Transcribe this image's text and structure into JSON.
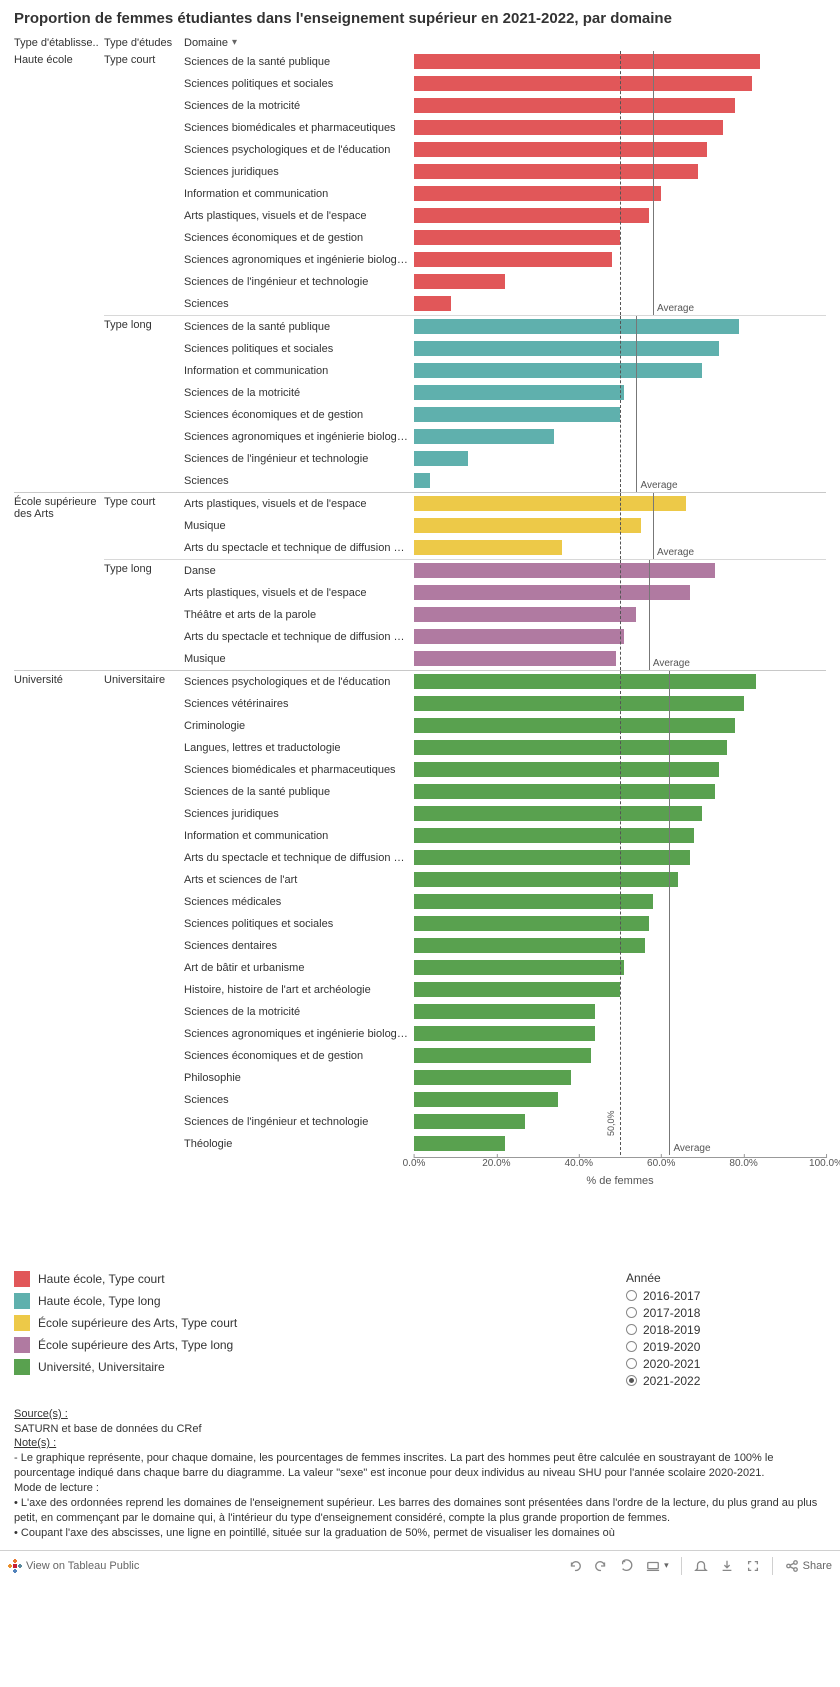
{
  "title": "Proportion de femmes étudiantes dans l'enseignement supérieur en 2021-2022, par domaine",
  "headers": {
    "etab": "Type d'établisse..",
    "etude": "Type d'études",
    "dom": "Domaine"
  },
  "axis": {
    "label": "% de femmes",
    "xlim": [
      0,
      100
    ],
    "ticks": [
      0,
      20,
      40,
      60,
      80,
      100
    ],
    "tick_labels": [
      "0.0%",
      "20.0%",
      "40.0%",
      "60.0%",
      "80.0%",
      "100.0%"
    ],
    "ref_line": 50.0,
    "ref_label": "50,0%"
  },
  "colors": {
    "he_court": "#e15759",
    "he_long": "#5fb0ad",
    "esa_court": "#edc948",
    "esa_long": "#b07aa1",
    "univ": "#59a14f",
    "ref_line": "#555555",
    "avg_line": "#777777",
    "bg": "#ffffff",
    "text": "#333333"
  },
  "groups": [
    {
      "etab": "Haute école",
      "subgroups": [
        {
          "etude": "Type court",
          "color_key": "he_court",
          "average": 58.0,
          "rows": [
            {
              "d": "Sciences de la santé publique",
              "v": 84.0
            },
            {
              "d": "Sciences politiques et sociales",
              "v": 82.0
            },
            {
              "d": "Sciences de la motricité",
              "v": 78.0
            },
            {
              "d": "Sciences biomédicales et pharmaceutiques",
              "v": 75.0
            },
            {
              "d": "Sciences psychologiques et de l'éducation",
              "v": 71.0
            },
            {
              "d": "Sciences juridiques",
              "v": 69.0
            },
            {
              "d": "Information et communication",
              "v": 60.0
            },
            {
              "d": "Arts plastiques, visuels et de l'espace",
              "v": 57.0
            },
            {
              "d": "Sciences économiques et de gestion",
              "v": 50.0
            },
            {
              "d": "Sciences agronomiques et ingénierie biologique",
              "v": 48.0
            },
            {
              "d": "Sciences de l'ingénieur et technologie",
              "v": 22.0
            },
            {
              "d": "Sciences",
              "v": 9.0
            }
          ]
        },
        {
          "etude": "Type long",
          "color_key": "he_long",
          "average": 54.0,
          "rows": [
            {
              "d": "Sciences de la santé publique",
              "v": 79.0
            },
            {
              "d": "Sciences politiques et sociales",
              "v": 74.0
            },
            {
              "d": "Information et communication",
              "v": 70.0
            },
            {
              "d": "Sciences de la motricité",
              "v": 51.0
            },
            {
              "d": "Sciences économiques et de gestion",
              "v": 50.0
            },
            {
              "d": "Sciences agronomiques et ingénierie biologique",
              "v": 34.0
            },
            {
              "d": "Sciences de l'ingénieur et technologie",
              "v": 13.0
            },
            {
              "d": "Sciences",
              "v": 4.0
            }
          ]
        }
      ]
    },
    {
      "etab": "École supérieure des Arts",
      "subgroups": [
        {
          "etude": "Type court",
          "color_key": "esa_court",
          "average": 58.0,
          "rows": [
            {
              "d": "Arts plastiques, visuels et de l'espace",
              "v": 66.0
            },
            {
              "d": "Musique",
              "v": 55.0
            },
            {
              "d": "Arts du spectacle et technique de diffusion et d..",
              "v": 36.0
            }
          ]
        },
        {
          "etude": "Type long",
          "color_key": "esa_long",
          "average": 57.0,
          "rows": [
            {
              "d": "Danse",
              "v": 73.0
            },
            {
              "d": "Arts plastiques, visuels et de l'espace",
              "v": 67.0
            },
            {
              "d": "Théâtre et arts de la parole",
              "v": 54.0
            },
            {
              "d": "Arts du spectacle et technique de diffusion et d..",
              "v": 51.0
            },
            {
              "d": "Musique",
              "v": 49.0
            }
          ]
        }
      ]
    },
    {
      "etab": "Université",
      "subgroups": [
        {
          "etude": "Universitaire",
          "color_key": "univ",
          "average": 62.0,
          "rows": [
            {
              "d": "Sciences psychologiques et de l'éducation",
              "v": 83.0
            },
            {
              "d": "Sciences vétérinaires",
              "v": 80.0
            },
            {
              "d": "Criminologie",
              "v": 78.0
            },
            {
              "d": "Langues, lettres et traductologie",
              "v": 76.0
            },
            {
              "d": "Sciences biomédicales et pharmaceutiques",
              "v": 74.0
            },
            {
              "d": "Sciences de la santé publique",
              "v": 73.0
            },
            {
              "d": "Sciences juridiques",
              "v": 70.0
            },
            {
              "d": "Information et communication",
              "v": 68.0
            },
            {
              "d": "Arts du spectacle et technique de diffusion et d..",
              "v": 67.0
            },
            {
              "d": "Arts et sciences de l'art",
              "v": 64.0
            },
            {
              "d": "Sciences médicales",
              "v": 58.0
            },
            {
              "d": "Sciences politiques et sociales",
              "v": 57.0
            },
            {
              "d": "Sciences dentaires",
              "v": 56.0
            },
            {
              "d": "Art de bâtir et urbanisme",
              "v": 51.0
            },
            {
              "d": "Histoire, histoire de l'art et archéologie",
              "v": 50.0
            },
            {
              "d": "Sciences de la motricité",
              "v": 44.0
            },
            {
              "d": "Sciences agronomiques et ingénierie biologique",
              "v": 44.0
            },
            {
              "d": "Sciences économiques et de gestion",
              "v": 43.0
            },
            {
              "d": "Philosophie",
              "v": 38.0
            },
            {
              "d": "Sciences",
              "v": 35.0
            },
            {
              "d": "Sciences de l'ingénieur et technologie",
              "v": 27.0
            },
            {
              "d": "Théologie",
              "v": 22.0
            }
          ]
        }
      ]
    }
  ],
  "legend": {
    "items": [
      {
        "label": "Haute école, Type court",
        "color_key": "he_court"
      },
      {
        "label": "Haute école, Type long",
        "color_key": "he_long"
      },
      {
        "label": "École supérieure des Arts, Type court",
        "color_key": "esa_court"
      },
      {
        "label": "École supérieure des Arts, Type long",
        "color_key": "esa_long"
      },
      {
        "label": "Université, Universitaire",
        "color_key": "univ"
      }
    ],
    "year_header": "Année",
    "years": [
      "2016-2017",
      "2017-2018",
      "2018-2019",
      "2019-2020",
      "2020-2021",
      "2021-2022"
    ],
    "selected_year": "2021-2022"
  },
  "notes": {
    "source_h": "Source(s) :",
    "source_t": "SATURN et base de données du CRef",
    "notes_h": "Note(s) :",
    "notes_t": "- Le graphique représente, pour chaque domaine, les pourcentages de femmes inscrites. La part des hommes peut être calculée en soustrayant de 100% le pourcentage indiqué dans chaque barre du diagramme. La valeur \"sexe\" est inconue pour deux individus au niveau SHU pour l'année scolaire 2020-2021.",
    "mode_h": "Mode de lecture :",
    "mode_t1": "• L'axe des ordonnées reprend les domaines de l'enseignement supérieur. Les barres des domaines sont présentées dans l'ordre de la lecture, du plus grand au plus petit, en commençant par le domaine qui, à l'intérieur du type d'enseignement considéré, compte la plus grande proportion de femmes.",
    "mode_t2": "• Coupant l'axe des abscisses, une ligne en pointillé, située sur la graduation de 50%, permet de visualiser les domaines où"
  },
  "toolbar": {
    "view": "View on Tableau Public",
    "share": "Share"
  },
  "avg_label": "Average"
}
